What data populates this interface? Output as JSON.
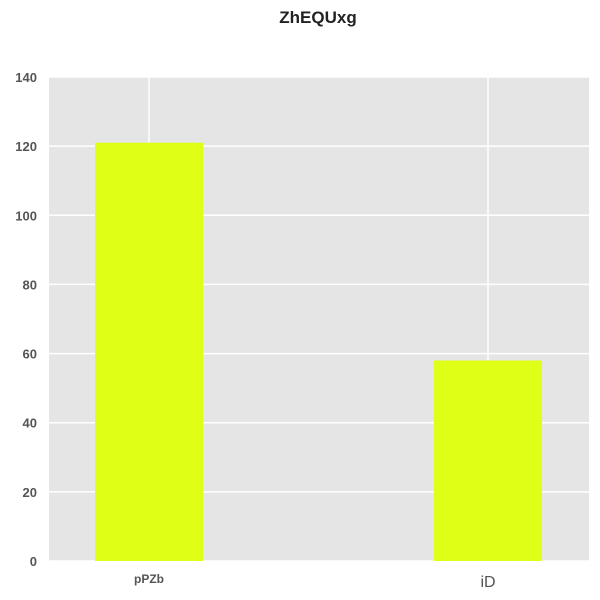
{
  "chart_data": {
    "type": "bar",
    "title": "ZhEQUxg",
    "categories": [
      "pPZb",
      "iD"
    ],
    "values": [
      121,
      58
    ],
    "xlabel": "",
    "ylabel": "",
    "ylim": [
      0,
      140
    ],
    "yticks": [
      0,
      20,
      40,
      60,
      80,
      100,
      120,
      140
    ],
    "grid": true,
    "legend": "none",
    "colors": {
      "bar": "#e0ff17",
      "plot_background": "#e5e5e5",
      "grid": "#ffffff",
      "tick_text": "#555555",
      "title_text": "#222222"
    }
  }
}
